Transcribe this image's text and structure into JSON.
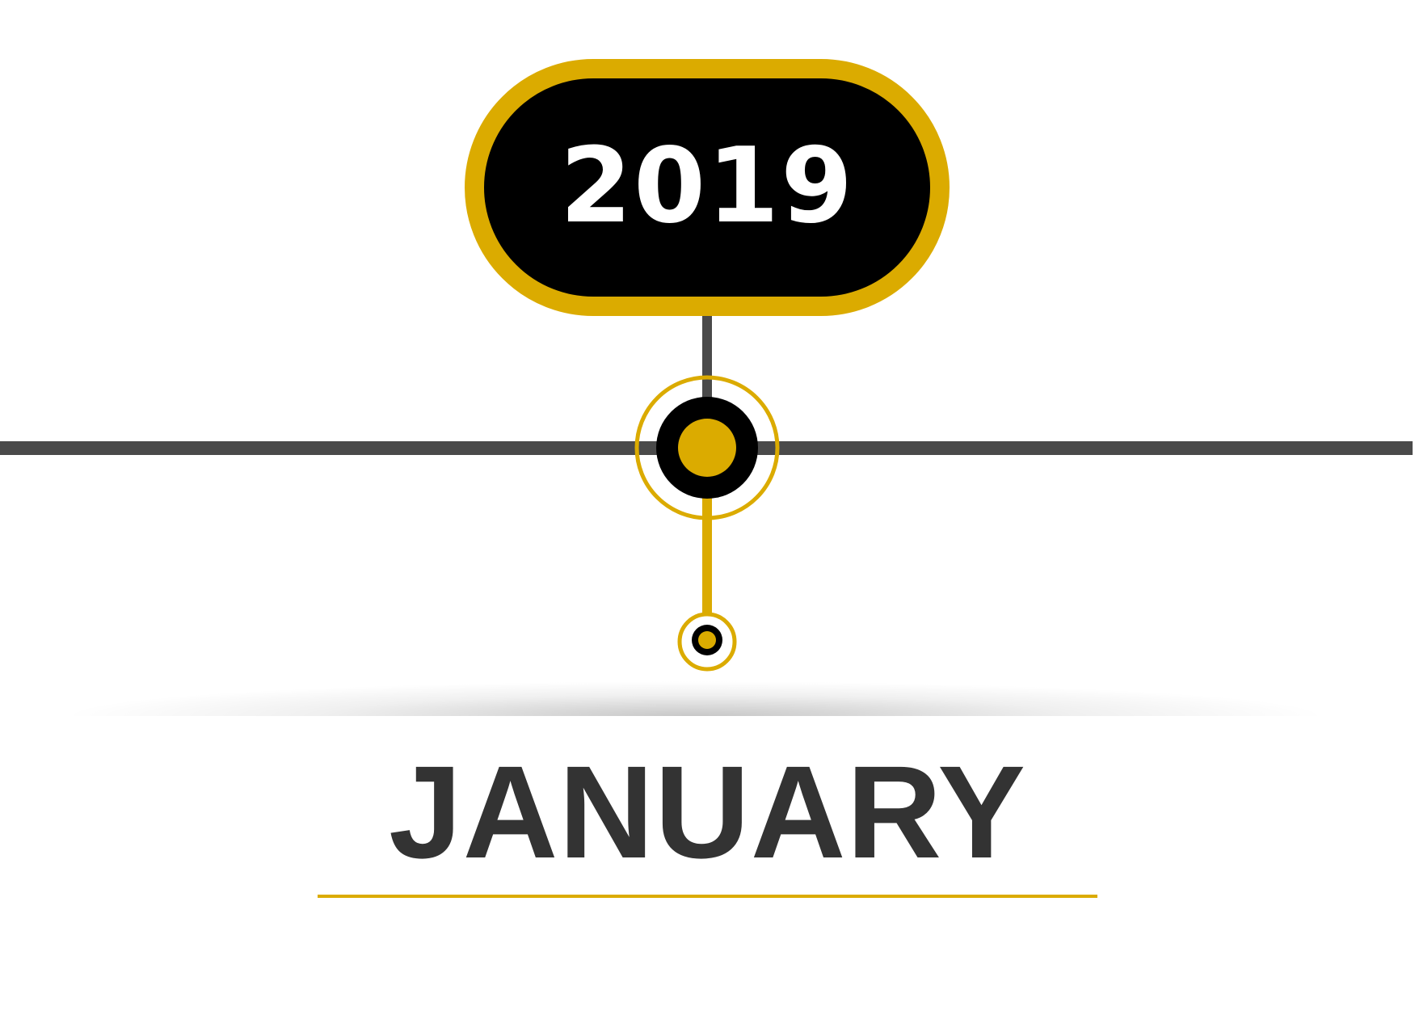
{
  "timeline": {
    "year": "2019",
    "month": "JANUARY"
  },
  "colors": {
    "accent": "#dbab00",
    "pill_fill": "#000000",
    "track": "#4a4a4a",
    "year_text": "#ffffff",
    "month_text": "#333333",
    "background": "#ffffff"
  }
}
